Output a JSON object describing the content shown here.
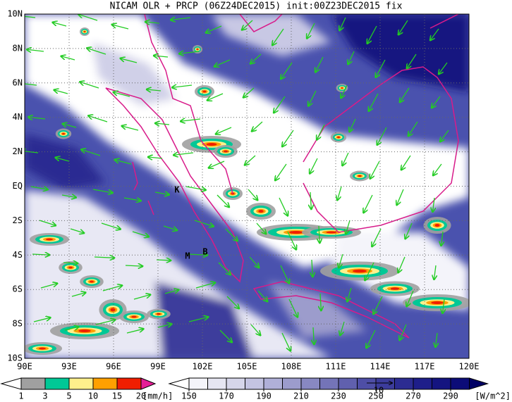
{
  "title": "NICAM OLR + PRCP (06Z24DEC2015) init:00Z23DEC2015 fix",
  "map": {
    "xlim": [
      90,
      120
    ],
    "ylim": [
      -10,
      10
    ],
    "xticks": [
      {
        "value": 90,
        "label": "90E"
      },
      {
        "value": 93,
        "label": "93E"
      },
      {
        "value": 96,
        "label": "96E"
      },
      {
        "value": 99,
        "label": "99E"
      },
      {
        "value": 102,
        "label": "102E"
      },
      {
        "value": 105,
        "label": "105E"
      },
      {
        "value": 108,
        "label": "108E"
      },
      {
        "value": 111,
        "label": "111E"
      },
      {
        "value": 114,
        "label": "114E"
      },
      {
        "value": 117,
        "label": "117E"
      },
      {
        "value": 120,
        "label": "120E"
      }
    ],
    "yticks": [
      {
        "value": 10,
        "label": "10N"
      },
      {
        "value": 8,
        "label": "8N"
      },
      {
        "value": 6,
        "label": "6N"
      },
      {
        "value": 4,
        "label": "4N"
      },
      {
        "value": 2,
        "label": "2N"
      },
      {
        "value": 0,
        "label": "EQ"
      },
      {
        "value": -2,
        "label": "2S"
      },
      {
        "value": -4,
        "label": "4S"
      },
      {
        "value": -6,
        "label": "6S"
      },
      {
        "value": -8,
        "label": "8S"
      },
      {
        "value": -10,
        "label": "10S"
      }
    ],
    "grid": true,
    "markers": [
      "K",
      "M",
      "B"
    ]
  },
  "precip_colorbar": {
    "levels": [
      1,
      3,
      5,
      10,
      15,
      20
    ],
    "unit": "[mm/h]",
    "colors": [
      "#ffffff",
      "#a0a0a0",
      "#00c896",
      "#fff08c",
      "#ffa000",
      "#f01e00",
      "#e61e96"
    ]
  },
  "olr_colorbar": {
    "levels": [
      150,
      170,
      190,
      210,
      230,
      250,
      270,
      290
    ],
    "unit": "[W/m^2]",
    "colors": [
      "#ffffff",
      "#f4f4fa",
      "#e6e6f2",
      "#d6d6ea",
      "#c4c4e2",
      "#b0b0d8",
      "#9c9ccc",
      "#8888c2",
      "#7474b8",
      "#6060ae",
      "#4e4ea6",
      "#3c3c9c",
      "#2c2c92",
      "#1e1e8a",
      "#141480",
      "#0c0c78",
      "#000064"
    ]
  },
  "vector_reference": {
    "value": 10
  }
}
